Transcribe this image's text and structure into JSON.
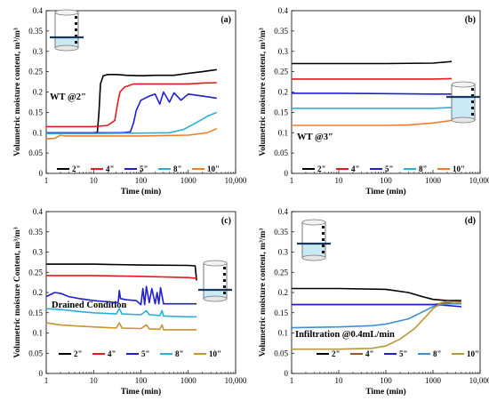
{
  "chart_data": [
    {
      "type": "line",
      "panel_label": "(a)",
      "annotation": "WT @2\"",
      "xlabel": "Time (min)",
      "ylabel": "Volumetric moisture content, m³/m³",
      "xscale": "log",
      "xlim": [
        1,
        10000
      ],
      "ylim": [
        0,
        0.4
      ],
      "x_tick_labels": [
        "1",
        "10",
        "100",
        "1000",
        "10,000"
      ],
      "y_tick_labels": [
        "0",
        "0.05",
        "0.1",
        "0.15",
        "0.2",
        "0.25",
        "0.3",
        "0.35",
        "0.4"
      ],
      "legend_placement": "bottom",
      "series": [
        {
          "name": "2\"",
          "color": "#000000",
          "x": [
            1,
            5,
            10,
            12,
            13,
            14,
            16,
            20,
            30,
            50,
            100,
            200,
            500,
            1000,
            2000,
            4000
          ],
          "y": [
            0.098,
            0.099,
            0.1,
            0.101,
            0.15,
            0.22,
            0.24,
            0.243,
            0.243,
            0.241,
            0.24,
            0.241,
            0.241,
            0.246,
            0.25,
            0.255
          ]
        },
        {
          "name": "4\"",
          "color": "#e41a1c",
          "x": [
            1,
            5,
            10,
            20,
            28,
            32,
            36,
            45,
            70,
            100,
            300,
            1000,
            2000,
            4000
          ],
          "y": [
            0.115,
            0.115,
            0.115,
            0.118,
            0.13,
            0.17,
            0.2,
            0.212,
            0.22,
            0.22,
            0.22,
            0.22,
            0.222,
            0.223
          ]
        },
        {
          "name": "5\"",
          "color": "#1f1fd0",
          "x": [
            1,
            10,
            40,
            60,
            70,
            80,
            100,
            150,
            200,
            250,
            300,
            400,
            500,
            700,
            1000,
            2000,
            4000
          ],
          "y": [
            0.1,
            0.1,
            0.1,
            0.102,
            0.125,
            0.155,
            0.18,
            0.19,
            0.195,
            0.17,
            0.2,
            0.175,
            0.198,
            0.18,
            0.195,
            0.19,
            0.185
          ]
        },
        {
          "name": "8\"",
          "color": "#2ab0d8",
          "x": [
            1,
            10,
            100,
            400,
            800,
            1500,
            2500,
            4000
          ],
          "y": [
            0.098,
            0.098,
            0.099,
            0.1,
            0.108,
            0.125,
            0.14,
            0.15
          ]
        },
        {
          "name": "10\"",
          "color": "#f07d2e",
          "x": [
            1,
            1.5,
            2,
            2.5,
            5,
            10,
            100,
            1000,
            2500,
            4000
          ],
          "y": [
            0.085,
            0.086,
            0.094,
            0.092,
            0.092,
            0.092,
            0.092,
            0.094,
            0.1,
            0.11
          ]
        }
      ]
    },
    {
      "type": "line",
      "panel_label": "(b)",
      "annotation": "WT @3″",
      "xlabel": "Time (min)",
      "ylabel": "Volumetric moisture content, m³/m³",
      "xscale": "log",
      "xlim": [
        1,
        10000
      ],
      "ylim": [
        0,
        0.4
      ],
      "x_tick_labels": [
        "1",
        "10",
        "100",
        "1000",
        "10,000"
      ],
      "y_tick_labels": [
        "0",
        "0.05",
        "0.1",
        "0.15",
        "0.2",
        "0.25",
        "0.3",
        "0.35",
        "0.4"
      ],
      "legend_placement": "bottom",
      "series": [
        {
          "name": "2\"",
          "color": "#000000",
          "x": [
            1,
            10,
            100,
            1000,
            2500
          ],
          "y": [
            0.27,
            0.27,
            0.27,
            0.271,
            0.275
          ]
        },
        {
          "name": "4\"",
          "color": "#e41a1c",
          "x": [
            1,
            10,
            100,
            1000,
            2500
          ],
          "y": [
            0.232,
            0.232,
            0.232,
            0.232,
            0.233
          ]
        },
        {
          "name": "5\"",
          "color": "#1f1fd0",
          "x": [
            1,
            10,
            100,
            1000,
            2500
          ],
          "y": [
            0.197,
            0.197,
            0.196,
            0.195,
            0.195
          ]
        },
        {
          "name": "8\"",
          "color": "#2ab0d8",
          "x": [
            1,
            10,
            100,
            1000,
            2500
          ],
          "y": [
            0.16,
            0.16,
            0.16,
            0.16,
            0.162
          ]
        },
        {
          "name": "10\"",
          "color": "#f07d2e",
          "x": [
            1,
            10,
            100,
            300,
            1000,
            2500
          ],
          "y": [
            0.118,
            0.118,
            0.118,
            0.119,
            0.124,
            0.13
          ]
        }
      ]
    },
    {
      "type": "line",
      "panel_label": "(c)",
      "annotation": "Drained Condition",
      "xlabel": "Time (min)",
      "ylabel": "Volumetric moisture Content, m³/m³",
      "xscale": "log",
      "xlim": [
        1,
        10000
      ],
      "ylim": [
        0,
        0.4
      ],
      "x_tick_labels": [
        "1",
        "10",
        "100",
        "1000",
        "10,000"
      ],
      "y_tick_labels": [
        "0",
        "0.05",
        "0.1",
        "0.15",
        "0.2",
        "0.25",
        "0.3",
        "0.35",
        "0.4"
      ],
      "legend_placement": "bottom",
      "series": [
        {
          "name": "2\"",
          "color": "#000000",
          "x": [
            1,
            10,
            100,
            1000,
            1400,
            1500
          ],
          "y": [
            0.27,
            0.27,
            0.268,
            0.267,
            0.266,
            0.23
          ]
        },
        {
          "name": "4\"",
          "color": "#e41a1c",
          "x": [
            1,
            10,
            100,
            1000,
            1500
          ],
          "y": [
            0.242,
            0.242,
            0.24,
            0.237,
            0.235
          ]
        },
        {
          "name": "5\"",
          "color": "#1f1fd0",
          "x": [
            1,
            1.5,
            2,
            3,
            5,
            10,
            20,
            33,
            35,
            37,
            50,
            80,
            100,
            110,
            120,
            130,
            150,
            170,
            200,
            220,
            240,
            260,
            300,
            1000,
            1500
          ],
          "y": [
            0.19,
            0.2,
            0.198,
            0.19,
            0.185,
            0.18,
            0.177,
            0.175,
            0.205,
            0.185,
            0.182,
            0.18,
            0.17,
            0.21,
            0.17,
            0.215,
            0.175,
            0.21,
            0.172,
            0.2,
            0.172,
            0.212,
            0.172,
            0.172,
            0.172
          ]
        },
        {
          "name": "8\"",
          "color": "#2ab0d8",
          "x": [
            1,
            2,
            5,
            10,
            30,
            35,
            40,
            100,
            130,
            150,
            170,
            250,
            280,
            300,
            1000,
            1500
          ],
          "y": [
            0.16,
            0.158,
            0.153,
            0.15,
            0.147,
            0.16,
            0.147,
            0.145,
            0.155,
            0.145,
            0.145,
            0.143,
            0.155,
            0.142,
            0.14,
            0.14
          ]
        },
        {
          "name": "10\"",
          "color": "#c9932f",
          "x": [
            1,
            2,
            5,
            10,
            30,
            35,
            40,
            100,
            130,
            150,
            170,
            250,
            280,
            300,
            1000,
            1500
          ],
          "y": [
            0.125,
            0.12,
            0.117,
            0.115,
            0.112,
            0.125,
            0.112,
            0.111,
            0.12,
            0.11,
            0.11,
            0.109,
            0.12,
            0.108,
            0.108,
            0.108
          ]
        }
      ]
    },
    {
      "type": "line",
      "panel_label": "(d)",
      "annotation": "Infiltration @0.4mL/min",
      "xlabel": "Time (min)",
      "ylabel": "Volumetric moisture content, m³/m³",
      "xscale": "log",
      "xlim": [
        1,
        10000
      ],
      "ylim": [
        0,
        0.4
      ],
      "x_tick_labels": [
        "1",
        "10",
        "100",
        "1000",
        "10,000"
      ],
      "y_tick_labels": [
        "0",
        "0.05",
        "0.1",
        "0.15",
        "0.2",
        "0.25",
        "0.3",
        "0.35",
        "0.4"
      ],
      "legend_placement": "bottom",
      "series": [
        {
          "name": "2\"",
          "color": "#000000",
          "x": [
            1,
            10,
            100,
            300,
            600,
            1000,
            2000,
            4000
          ],
          "y": [
            0.21,
            0.21,
            0.208,
            0.2,
            0.19,
            0.183,
            0.18,
            0.18
          ]
        },
        {
          "name": "4\"",
          "color": "#a0522d",
          "x": [
            1,
            10,
            100,
            1000,
            2000,
            4000
          ],
          "y": [
            0.17,
            0.17,
            0.17,
            0.17,
            0.175,
            0.178
          ]
        },
        {
          "name": "5\"",
          "color": "#1f1fd0",
          "x": [
            1,
            10,
            100,
            1000,
            2000,
            4000
          ],
          "y": [
            0.17,
            0.17,
            0.17,
            0.17,
            0.168,
            0.165
          ]
        },
        {
          "name": "8\"",
          "color": "#3a8fd8",
          "x": [
            1,
            10,
            50,
            100,
            300,
            600,
            1000,
            2000,
            4000
          ],
          "y": [
            0.113,
            0.115,
            0.118,
            0.122,
            0.135,
            0.152,
            0.165,
            0.172,
            0.172
          ]
        },
        {
          "name": "10\"",
          "color": "#b89a3a",
          "x": [
            1,
            10,
            50,
            100,
            200,
            400,
            700,
            1000,
            1500,
            2000,
            4000
          ],
          "y": [
            0.06,
            0.06,
            0.062,
            0.068,
            0.085,
            0.11,
            0.14,
            0.16,
            0.175,
            0.178,
            0.175
          ]
        }
      ]
    }
  ]
}
